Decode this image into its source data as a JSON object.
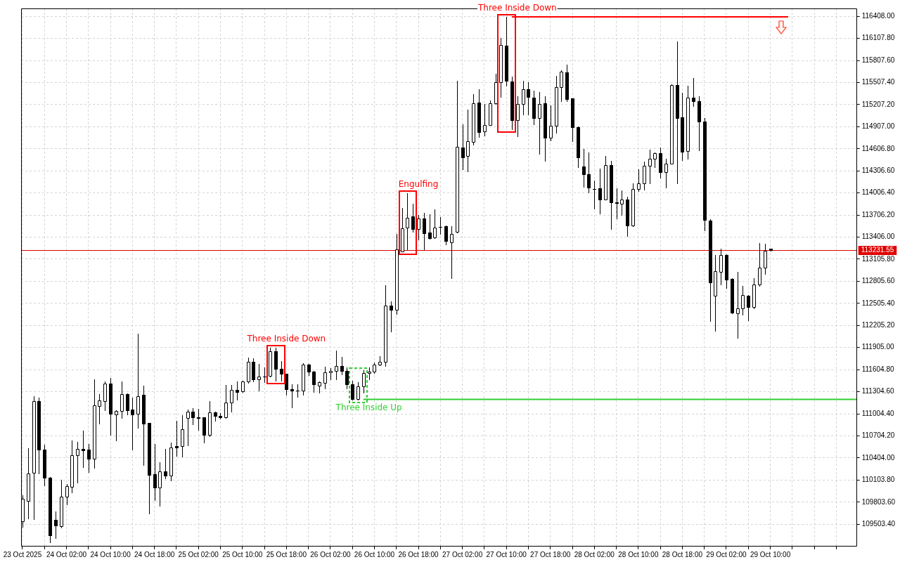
{
  "chart_data": {
    "type": "candlestick",
    "color": "#000000",
    "x": [
      "2025-10-23T18:00",
      "2025-10-23T19:00",
      "2025-10-23T20:00",
      "2025-10-23T21:00",
      "2025-10-23T22:00",
      "2025-10-23T23:00",
      "2025-10-24T00:00",
      "2025-10-24T01:00",
      "2025-10-24T02:00",
      "2025-10-24T03:00",
      "2025-10-24T04:00",
      "2025-10-24T05:00",
      "2025-10-24T06:00",
      "2025-10-24T07:00",
      "2025-10-24T08:00",
      "2025-10-24T09:00",
      "2025-10-24T10:00",
      "2025-10-24T11:00",
      "2025-10-24T12:00",
      "2025-10-24T13:00",
      "2025-10-24T14:00",
      "2025-10-24T15:00",
      "2025-10-24T16:00",
      "2025-10-24T17:00",
      "2025-10-24T18:00",
      "2025-10-24T19:00",
      "2025-10-24T20:00",
      "2025-10-24T21:00",
      "2025-10-24T22:00",
      "2025-10-24T23:00",
      "2025-10-25T00:00",
      "2025-10-25T01:00",
      "2025-10-25T02:00",
      "2025-10-25T03:00",
      "2025-10-25T04:00",
      "2025-10-25T05:00",
      "2025-10-25T06:00",
      "2025-10-25T07:00",
      "2025-10-25T08:00",
      "2025-10-25T09:00",
      "2025-10-25T10:00",
      "2025-10-25T11:00",
      "2025-10-25T12:00",
      "2025-10-25T13:00",
      "2025-10-25T14:00",
      "2025-10-25T15:00",
      "2025-10-25T16:00",
      "2025-10-25T17:00",
      "2025-10-25T18:00",
      "2025-10-25T19:00",
      "2025-10-25T20:00",
      "2025-10-25T21:00",
      "2025-10-25T22:00",
      "2025-10-25T23:00",
      "2025-10-26T00:00",
      "2025-10-26T01:00",
      "2025-10-26T02:00",
      "2025-10-26T03:00",
      "2025-10-26T04:00",
      "2025-10-26T05:00",
      "2025-10-26T06:00",
      "2025-10-26T07:00",
      "2025-10-26T08:00",
      "2025-10-26T09:00",
      "2025-10-26T10:00",
      "2025-10-26T11:00",
      "2025-10-26T12:00",
      "2025-10-26T13:00",
      "2025-10-26T14:00",
      "2025-10-26T15:00",
      "2025-10-26T16:00",
      "2025-10-26T17:00",
      "2025-10-26T18:00",
      "2025-10-26T19:00",
      "2025-10-26T20:00",
      "2025-10-26T21:00",
      "2025-10-26T22:00",
      "2025-10-26T23:00",
      "2025-10-27T00:00",
      "2025-10-27T01:00",
      "2025-10-27T02:00",
      "2025-10-27T03:00",
      "2025-10-27T04:00",
      "2025-10-27T05:00",
      "2025-10-27T06:00",
      "2025-10-27T07:00",
      "2025-10-27T08:00",
      "2025-10-27T09:00",
      "2025-10-27T10:00",
      "2025-10-27T11:00",
      "2025-10-27T12:00",
      "2025-10-27T13:00",
      "2025-10-27T14:00",
      "2025-10-27T15:00",
      "2025-10-27T16:00",
      "2025-10-27T17:00",
      "2025-10-27T18:00",
      "2025-10-27T19:00",
      "2025-10-27T20:00",
      "2025-10-27T21:00",
      "2025-10-27T22:00",
      "2025-10-27T23:00",
      "2025-10-28T00:00",
      "2025-10-28T01:00",
      "2025-10-28T02:00",
      "2025-10-28T03:00",
      "2025-10-28T04:00",
      "2025-10-28T05:00",
      "2025-10-28T06:00",
      "2025-10-28T07:00",
      "2025-10-28T08:00",
      "2025-10-28T09:00",
      "2025-10-28T10:00",
      "2025-10-28T11:00",
      "2025-10-28T12:00",
      "2025-10-28T13:00",
      "2025-10-28T14:00",
      "2025-10-28T15:00",
      "2025-10-28T16:00",
      "2025-10-28T17:00",
      "2025-10-28T18:00",
      "2025-10-28T19:00",
      "2025-10-28T20:00",
      "2025-10-28T21:00",
      "2025-10-28T22:00",
      "2025-10-28T23:00",
      "2025-10-29T00:00",
      "2025-10-29T01:00",
      "2025-10-29T02:00",
      "2025-10-29T03:00",
      "2025-10-29T04:00",
      "2025-10-29T05:00",
      "2025-10-29T06:00",
      "2025-10-29T07:00",
      "2025-10-29T08:00",
      "2025-10-29T09:00",
      "2025-10-29T10:00"
    ],
    "ohlc": [
      [
        109540,
        109895,
        109470,
        109850
      ],
      [
        109825,
        110535,
        109580,
        110195
      ],
      [
        110205,
        111240,
        109575,
        111175
      ],
      [
        111175,
        111225,
        110195,
        110515
      ],
      [
        110515,
        110580,
        110035,
        110135
      ],
      [
        110140,
        110145,
        109255,
        109355
      ],
      [
        109565,
        109680,
        109310,
        109485
      ],
      [
        109480,
        110110,
        109455,
        109880
      ],
      [
        109880,
        110050,
        109775,
        110025
      ],
      [
        110015,
        110645,
        109935,
        110440
      ],
      [
        110440,
        110620,
        110065,
        110530
      ],
      [
        110530,
        110780,
        110280,
        110510
      ],
      [
        110515,
        110590,
        110210,
        110395
      ],
      [
        110395,
        111475,
        110265,
        111115
      ],
      [
        111110,
        111270,
        110875,
        111190
      ],
      [
        111180,
        111445,
        111055,
        111415
      ],
      [
        111415,
        111495,
        110715,
        111005
      ],
      [
        111000,
        111050,
        110640,
        111040
      ],
      [
        111040,
        111440,
        110945,
        111275
      ],
      [
        111275,
        111280,
        111000,
        111055
      ],
      [
        111060,
        111225,
        110515,
        111000
      ],
      [
        111005,
        112090,
        110810,
        111245
      ],
      [
        111260,
        111390,
        110310,
        110875
      ],
      [
        110880,
        110885,
        109645,
        110170
      ],
      [
        110185,
        110590,
        109830,
        110005
      ],
      [
        110005,
        110345,
        109750,
        110220
      ],
      [
        110220,
        110530,
        110130,
        110160
      ],
      [
        110165,
        110615,
        110100,
        110550
      ],
      [
        110565,
        110910,
        110430,
        110545
      ],
      [
        110570,
        110985,
        110425,
        110795
      ],
      [
        110945,
        111060,
        110575,
        111035
      ],
      [
        111035,
        111085,
        110865,
        110960
      ],
      [
        110960,
        111075,
        110790,
        110950
      ],
      [
        110955,
        110960,
        110615,
        110715
      ],
      [
        110715,
        111180,
        110700,
        111020
      ],
      [
        111020,
        111035,
        110905,
        110975
      ],
      [
        110975,
        111010,
        110935,
        110955
      ],
      [
        110955,
        111400,
        110950,
        111160
      ],
      [
        111160,
        111395,
        111030,
        111330
      ],
      [
        111330,
        111445,
        111195,
        111305
      ],
      [
        111310,
        111450,
        111305,
        111445
      ],
      [
        111440,
        111765,
        111425,
        111715
      ],
      [
        111715,
        111755,
        111445,
        111470
      ],
      [
        111470,
        111680,
        111320,
        111510
      ],
      [
        111515,
        111635,
        111430,
        111515
      ],
      [
        111520,
        111900,
        111515,
        111855
      ],
      [
        111855,
        111900,
        111455,
        111620
      ],
      [
        111620,
        111720,
        111455,
        111545
      ],
      [
        111545,
        111550,
        111265,
        111335
      ],
      [
        111335,
        111405,
        111090,
        111320
      ],
      [
        111320,
        111405,
        111235,
        111320
      ],
      [
        111320,
        111690,
        111265,
        111670
      ],
      [
        111670,
        111680,
        111530,
        111580
      ],
      [
        111580,
        111585,
        111305,
        111410
      ],
      [
        111385,
        111445,
        111290,
        111430
      ],
      [
        111425,
        111640,
        111345,
        111570
      ],
      [
        111565,
        111630,
        111475,
        111590
      ],
      [
        111585,
        111860,
        111475,
        111655
      ],
      [
        111650,
        111780,
        111540,
        111585
      ],
      [
        111590,
        111635,
        111345,
        111405
      ],
      [
        111405,
        111455,
        111200,
        111210
      ],
      [
        111210,
        111430,
        111200,
        111380
      ],
      [
        111380,
        111595,
        111295,
        111555
      ],
      [
        111555,
        111635,
        111475,
        111580
      ],
      [
        111580,
        111700,
        111555,
        111670
      ],
      [
        111670,
        111790,
        111665,
        111715
      ],
      [
        111715,
        112755,
        111650,
        112480
      ],
      [
        112480,
        112530,
        112125,
        112420
      ],
      [
        112420,
        113445,
        112360,
        113240
      ],
      [
        113215,
        113805,
        113210,
        113530
      ],
      [
        113535,
        114000,
        113235,
        113670
      ],
      [
        113685,
        113860,
        113475,
        113520
      ],
      [
        113520,
        113705,
        113375,
        113655
      ],
      [
        113655,
        113740,
        113235,
        113460
      ],
      [
        113465,
        113720,
        113385,
        113395
      ],
      [
        113400,
        113780,
        113395,
        113540
      ],
      [
        113545,
        113680,
        113450,
        113545
      ],
      [
        113555,
        113560,
        113310,
        113350
      ],
      [
        113335,
        113555,
        112845,
        113450
      ],
      [
        113475,
        115530,
        113470,
        114635
      ],
      [
        114620,
        114935,
        114325,
        114495
      ],
      [
        114510,
        115140,
        114300,
        114710
      ],
      [
        114705,
        115350,
        114660,
        115225
      ],
      [
        115235,
        115415,
        114770,
        114835
      ],
      [
        114840,
        115215,
        114785,
        114930
      ],
      [
        114930,
        115260,
        114925,
        115225
      ],
      [
        115225,
        115630,
        115220,
        115515
      ],
      [
        115515,
        116115,
        115315,
        116015
      ],
      [
        116005,
        116400,
        115465,
        115535
      ],
      [
        115520,
        115585,
        114870,
        114995
      ],
      [
        115000,
        115325,
        114780,
        115215
      ],
      [
        115215,
        115535,
        115075,
        115420
      ],
      [
        115420,
        115510,
        115075,
        115310
      ],
      [
        115300,
        115395,
        114935,
        115025
      ],
      [
        115025,
        115375,
        114535,
        115215
      ],
      [
        115225,
        115320,
        114440,
        114755
      ],
      [
        114755,
        115200,
        114720,
        114920
      ],
      [
        114920,
        115600,
        114825,
        115450
      ],
      [
        115450,
        115675,
        115255,
        115655
      ],
      [
        115645,
        115755,
        115255,
        115285
      ],
      [
        115290,
        115295,
        114710,
        114900
      ],
      [
        114905,
        114910,
        114355,
        114495
      ],
      [
        114370,
        114605,
        114085,
        114260
      ],
      [
        114265,
        114560,
        114015,
        114080
      ],
      [
        114065,
        114180,
        113790,
        114065
      ],
      [
        114070,
        114340,
        113725,
        113920
      ],
      [
        113920,
        114510,
        113915,
        114385
      ],
      [
        114385,
        114440,
        113520,
        113875
      ],
      [
        113880,
        114070,
        113655,
        113870
      ],
      [
        113860,
        114040,
        113705,
        113915
      ],
      [
        113915,
        113955,
        113420,
        113560
      ],
      [
        113560,
        114140,
        113555,
        114065
      ],
      [
        114065,
        114325,
        114030,
        114135
      ],
      [
        114135,
        114435,
        114055,
        114375
      ],
      [
        114375,
        114600,
        114140,
        114470
      ],
      [
        114470,
        114560,
        114360,
        114545
      ],
      [
        114545,
        114620,
        114215,
        114290
      ],
      [
        114290,
        114475,
        114080,
        114400
      ],
      [
        114405,
        115480,
        114400,
        115475
      ],
      [
        115475,
        116065,
        114140,
        115025
      ],
      [
        115035,
        115365,
        114450,
        114570
      ],
      [
        114575,
        115460,
        114470,
        115300
      ],
      [
        115300,
        115565,
        115185,
        115250
      ],
      [
        115250,
        115325,
        114590,
        114975
      ],
      [
        114980,
        115030,
        113500,
        113640
      ],
      [
        113635,
        113650,
        112265,
        112795
      ],
      [
        112605,
        113165,
        112135,
        112940
      ],
      [
        112935,
        113245,
        112765,
        113165
      ],
      [
        113165,
        113170,
        112715,
        112830
      ],
      [
        112840,
        112850,
        112375,
        112380
      ],
      [
        112370,
        112930,
        112035,
        112440
      ],
      [
        112440,
        112745,
        112355,
        112620
      ],
      [
        112610,
        112615,
        112275,
        112460
      ],
      [
        112455,
        112850,
        112440,
        112765
      ],
      [
        112765,
        113325,
        112745,
        112990
      ],
      [
        112990,
        113315,
        112910,
        113225
      ],
      [
        113245,
        113250,
        113225,
        113230
      ]
    ],
    "colors": [
      "#ffffff",
      "#ffffff",
      "#ffffff",
      "#000000",
      "#000000",
      "#000000",
      "#000000",
      "#ffffff",
      "#ffffff",
      "#ffffff",
      "#ffffff",
      "#000000",
      "#000000",
      "#ffffff",
      "#ffffff",
      "#ffffff",
      "#000000",
      "#ffffff",
      "#ffffff",
      "#000000",
      "#000000",
      "#ffffff",
      "#000000",
      "#000000",
      "#000000",
      "#ffffff",
      "#000000",
      "#ffffff",
      "#000000",
      "#ffffff",
      "#ffffff",
      "#000000",
      "#000000",
      "#000000",
      "#ffffff",
      "#000000",
      "#000000",
      "#ffffff",
      "#ffffff",
      "#000000",
      "#ffffff",
      "#ffffff",
      "#000000",
      "#ffffff",
      "#000000",
      "#ffffff",
      "#000000",
      "#000000",
      "#000000",
      "#000000",
      "#000000",
      "#ffffff",
      "#000000",
      "#000000",
      "#ffffff",
      "#ffffff",
      "#ffffff",
      "#ffffff",
      "#000000",
      "#000000",
      "#000000",
      "#ffffff",
      "#ffffff",
      "#ffffff",
      "#ffffff",
      "#ffffff",
      "#ffffff",
      "#000000",
      "#ffffff",
      "#ffffff",
      "#ffffff",
      "#000000",
      "#ffffff",
      "#000000",
      "#000000",
      "#ffffff",
      "#000000",
      "#000000",
      "#ffffff",
      "#ffffff",
      "#000000",
      "#ffffff",
      "#ffffff",
      "#000000",
      "#ffffff",
      "#ffffff",
      "#ffffff",
      "#ffffff",
      "#000000",
      "#000000",
      "#ffffff",
      "#ffffff",
      "#000000",
      "#000000",
      "#ffffff",
      "#000000",
      "#ffffff",
      "#ffffff",
      "#ffffff",
      "#000000",
      "#000000",
      "#000000",
      "#000000",
      "#000000",
      "#000000",
      "#000000",
      "#ffffff",
      "#000000",
      "#000000",
      "#ffffff",
      "#000000",
      "#ffffff",
      "#ffffff",
      "#ffffff",
      "#ffffff",
      "#ffffff",
      "#000000",
      "#ffffff",
      "#ffffff",
      "#000000",
      "#000000",
      "#ffffff",
      "#000000",
      "#000000",
      "#000000",
      "#000000",
      "#ffffff",
      "#ffffff",
      "#000000",
      "#000000",
      "#ffffff",
      "#ffffff",
      "#000000",
      "#ffffff",
      "#ffffff",
      "#ffffff",
      "#000000"
    ],
    "series": [
      {
        "type": "line",
        "color": "#32cd32",
        "x": [
          "2025-10-26T08:00",
          "2025-10-30T01:45"
        ],
        "values": [
          111200,
          111200
        ]
      },
      {
        "type": "line",
        "color": "#ff0000",
        "x": [
          "2025-10-27T11:00",
          "2025-10-29T13:15"
        ],
        "values": [
          116400,
          116400
        ]
      }
    ],
    "annotations": [
      {
        "text": "Three Inside Down",
        "x": "2025-10-25T16:00",
        "y": 111900
      },
      {
        "text": "Three Inside Up",
        "x": "2025-10-26T07:00",
        "y": 111200
      },
      {
        "text": "Engulfing",
        "x": "2025-10-26T16:00",
        "y": 114000
      },
      {
        "text": "Three Inside Down",
        "x": "2025-10-27T10:00",
        "y": 116400
      }
    ],
    "ref_lines": [
      {
        "axis": "y",
        "value": 113231.55,
        "label": "113231.55",
        "color": "#e00000"
      }
    ],
    "xlim": [
      "2025-10-23T17:45",
      "2025-10-30T01:45"
    ],
    "xticks": [
      {
        "value": "2025-10-23T18:00",
        "label": "23 Oct 2025"
      },
      {
        "value": "2025-10-23T22:00",
        "label": null
      },
      {
        "value": "2025-10-24T02:00",
        "label": "24 Oct 02:00"
      },
      {
        "value": "2025-10-24T06:00",
        "label": null
      },
      {
        "value": "2025-10-24T10:00",
        "label": "24 Oct 10:00"
      },
      {
        "value": "2025-10-24T14:00",
        "label": null
      },
      {
        "value": "2025-10-24T18:00",
        "label": "24 Oct 18:00"
      },
      {
        "value": "2025-10-24T22:00",
        "label": null
      },
      {
        "value": "2025-10-25T02:00",
        "label": "25 Oct 02:00"
      },
      {
        "value": "2025-10-25T06:00",
        "label": null
      },
      {
        "value": "2025-10-25T10:00",
        "label": "25 Oct 10:00"
      },
      {
        "value": "2025-10-25T14:00",
        "label": null
      },
      {
        "value": "2025-10-25T18:00",
        "label": "25 Oct 18:00"
      },
      {
        "value": "2025-10-25T22:00",
        "label": null
      },
      {
        "value": "2025-10-26T02:00",
        "label": "26 Oct 02:00"
      },
      {
        "value": "2025-10-26T06:00",
        "label": null
      },
      {
        "value": "2025-10-26T10:00",
        "label": "26 Oct 10:00"
      },
      {
        "value": "2025-10-26T14:00",
        "label": null
      },
      {
        "value": "2025-10-26T18:00",
        "label": "26 Oct 18:00"
      },
      {
        "value": "2025-10-26T22:00",
        "label": null
      },
      {
        "value": "2025-10-27T02:00",
        "label": "27 Oct 02:00"
      },
      {
        "value": "2025-10-27T06:00",
        "label": null
      },
      {
        "value": "2025-10-27T10:00",
        "label": "27 Oct 10:00"
      },
      {
        "value": "2025-10-27T14:00",
        "label": null
      },
      {
        "value": "2025-10-27T18:00",
        "label": "27 Oct 18:00"
      },
      {
        "value": "2025-10-27T22:00",
        "label": null
      },
      {
        "value": "2025-10-28T02:00",
        "label": "28 Oct 02:00"
      },
      {
        "value": "2025-10-28T06:00",
        "label": null
      },
      {
        "value": "2025-10-28T10:00",
        "label": "28 Oct 10:00"
      },
      {
        "value": "2025-10-28T14:00",
        "label": null
      },
      {
        "value": "2025-10-28T18:00",
        "label": "28 Oct 18:00"
      },
      {
        "value": "2025-10-28T22:00",
        "label": null
      },
      {
        "value": "2025-10-29T02:00",
        "label": "29 Oct 02:00"
      },
      {
        "value": "2025-10-29T06:00",
        "label": null
      },
      {
        "value": "2025-10-29T10:00",
        "label": "29 Oct 10:00"
      },
      {
        "value": "2025-10-29T14:00",
        "label": null
      },
      {
        "value": "2025-10-29T18:00",
        "label": null
      },
      {
        "value": "2025-10-29T22:00",
        "label": null
      }
    ],
    "ylim": [
      109200,
      116515
    ],
    "yticks": [
      {
        "value": 109503.4,
        "label": "109503.40"
      },
      {
        "value": 109803.6,
        "label": "109803.60"
      },
      {
        "value": 110103.8,
        "label": "110103.80"
      },
      {
        "value": 110404,
        "label": "110404.00"
      },
      {
        "value": 110704.2,
        "label": "110704.20"
      },
      {
        "value": 111004.4,
        "label": "111004.40"
      },
      {
        "value": 111304.6,
        "label": "111304.60"
      },
      {
        "value": 111604.8,
        "label": "111604.80"
      },
      {
        "value": 111905,
        "label": "111905.00"
      },
      {
        "value": 112205.2,
        "label": "112205.20"
      },
      {
        "value": 112505.4,
        "label": "112505.40"
      },
      {
        "value": 112805.6,
        "label": "112805.60"
      },
      {
        "value": 113105.8,
        "label": "113105.80"
      },
      {
        "value": 113406,
        "label": "113406.00"
      },
      {
        "value": 113706.2,
        "label": "113706.20"
      },
      {
        "value": 114006.4,
        "label": "114006.40"
      },
      {
        "value": 114306.6,
        "label": "114306.60"
      },
      {
        "value": 114606.8,
        "label": "114606.80"
      },
      {
        "value": 114907,
        "label": "114907.00"
      },
      {
        "value": 115207.2,
        "label": "115207.20"
      },
      {
        "value": 115507.4,
        "label": "115507.40"
      },
      {
        "value": 115807.6,
        "label": "115807.60"
      },
      {
        "value": 116107.8,
        "label": "116107.80"
      },
      {
        "value": 116408,
        "label": "116408.00"
      }
    ],
    "grid": true
  }
}
